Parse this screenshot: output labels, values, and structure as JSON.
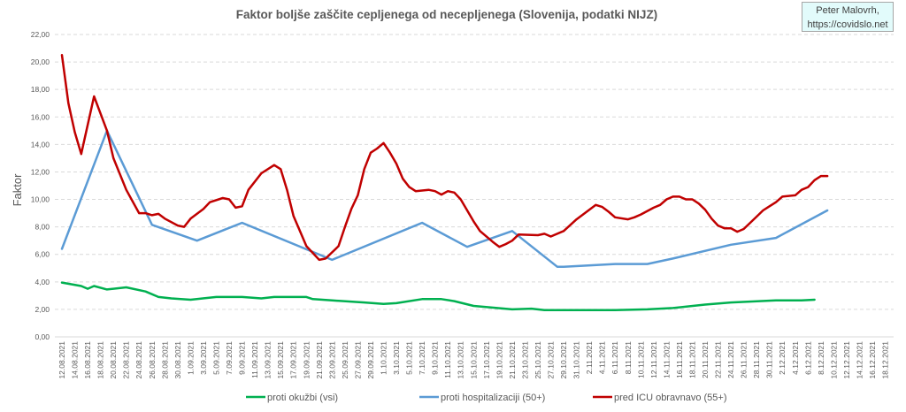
{
  "credit": {
    "line1": "Peter Malovrh,",
    "line2": "https://covidslo.net"
  },
  "chart_data": {
    "type": "line",
    "title": "Faktor boljše zaščite cepljenega od necepljenega (Slovenija, podatki NIJZ)",
    "xlabel": "",
    "ylabel": "Faktor",
    "ylim": [
      0,
      22
    ],
    "yticks": [
      "0,00",
      "2,00",
      "4,00",
      "6,00",
      "8,00",
      "10,00",
      "12,00",
      "14,00",
      "16,00",
      "18,00",
      "20,00",
      "22,00"
    ],
    "grid": "horizontal dashed",
    "legend_position": "bottom",
    "categories": [
      "12.08.2021",
      "14.08.2021",
      "16.08.2021",
      "18.08.2021",
      "20.08.2021",
      "22.08.2021",
      "24.08.2021",
      "26.08.2021",
      "28.08.2021",
      "30.08.2021",
      "1.09.2021",
      "3.09.2021",
      "5.09.2021",
      "7.09.2021",
      "9.09.2021",
      "11.09.2021",
      "13.09.2021",
      "15.09.2021",
      "17.09.2021",
      "19.09.2021",
      "21.09.2021",
      "23.09.2021",
      "25.09.2021",
      "27.09.2021",
      "29.09.2021",
      "1.10.2021",
      "3.10.2021",
      "5.10.2021",
      "7.10.2021",
      "9.10.2021",
      "11.10.2021",
      "13.10.2021",
      "15.10.2021",
      "17.10.2021",
      "19.10.2021",
      "21.10.2021",
      "23.10.2021",
      "25.10.2021",
      "27.10.2021",
      "29.10.2021",
      "31.10.2021",
      "2.11.2021",
      "4.11.2021",
      "6.11.2021",
      "8.11.2021",
      "10.11.2021",
      "12.11.2021",
      "14.11.2021",
      "16.11.2021",
      "18.11.2021",
      "20.11.2021",
      "22.11.2021",
      "24.11.2021",
      "26.11.2021",
      "28.11.2021",
      "30.11.2021",
      "2.12.2021",
      "4.12.2021",
      "6.12.2021",
      "8.12.2021",
      "10.12.2021",
      "12.12.2021",
      "14.12.2021",
      "16.12.2021",
      "18.12.2021"
    ],
    "series": [
      {
        "name": "proti okužbi (vsi)",
        "color": "#00b050",
        "points": [
          [
            "12.08.2021",
            3.95
          ],
          [
            "15.08.2021",
            3.7
          ],
          [
            "16.08.2021",
            3.5
          ],
          [
            "17.08.2021",
            3.7
          ],
          [
            "19.08.2021",
            3.45
          ],
          [
            "22.08.2021",
            3.6
          ],
          [
            "25.08.2021",
            3.3
          ],
          [
            "27.08.2021",
            2.9
          ],
          [
            "29.08.2021",
            2.8
          ],
          [
            "1.09.2021",
            2.7
          ],
          [
            "5.09.2021",
            2.9
          ],
          [
            "9.09.2021",
            2.9
          ],
          [
            "12.09.2021",
            2.8
          ],
          [
            "14.09.2021",
            2.9
          ],
          [
            "19.09.2021",
            2.9
          ],
          [
            "20.09.2021",
            2.75
          ],
          [
            "23.09.2021",
            2.65
          ],
          [
            "28.09.2021",
            2.5
          ],
          [
            "1.10.2021",
            2.4
          ],
          [
            "3.10.2021",
            2.45
          ],
          [
            "7.10.2021",
            2.75
          ],
          [
            "10.10.2021",
            2.75
          ],
          [
            "12.10.2021",
            2.6
          ],
          [
            "15.10.2021",
            2.25
          ],
          [
            "21.10.2021",
            2.0
          ],
          [
            "24.10.2021",
            2.05
          ],
          [
            "26.10.2021",
            1.95
          ],
          [
            "6.11.2021",
            1.95
          ],
          [
            "11.11.2021",
            2.0
          ],
          [
            "15.11.2021",
            2.1
          ],
          [
            "20.11.2021",
            2.35
          ],
          [
            "24.11.2021",
            2.5
          ],
          [
            "1.12.2021",
            2.65
          ],
          [
            "5.12.2021",
            2.65
          ],
          [
            "7.12.2021",
            2.7
          ]
        ]
      },
      {
        "name": "proti hospitalizaciji (50+)",
        "color": "#5b9bd5",
        "points": [
          [
            "12.08.2021",
            6.4
          ],
          [
            "19.08.2021",
            15.0
          ],
          [
            "26.08.2021",
            8.15
          ],
          [
            "2.09.2021",
            7.0
          ],
          [
            "9.09.2021",
            8.3
          ],
          [
            "23.09.2021",
            5.6
          ],
          [
            "7.10.2021",
            8.3
          ],
          [
            "14.10.2021",
            6.55
          ],
          [
            "21.10.2021",
            7.7
          ],
          [
            "28.10.2021",
            5.1
          ],
          [
            "29.10.2021",
            5.1
          ],
          [
            "6.11.2021",
            5.3
          ],
          [
            "11.11.2021",
            5.3
          ],
          [
            "15.11.2021",
            5.7
          ],
          [
            "24.11.2021",
            6.7
          ],
          [
            "1.12.2021",
            7.2
          ],
          [
            "9.12.2021",
            9.2
          ]
        ]
      },
      {
        "name": "pred ICU obravnavo (55+)",
        "color": "#c00000",
        "points": [
          [
            "12.08.2021",
            20.5
          ],
          [
            "13.08.2021",
            17.0
          ],
          [
            "14.08.2021",
            14.9
          ],
          [
            "15.08.2021",
            13.3
          ],
          [
            "17.08.2021",
            17.5
          ],
          [
            "19.08.2021",
            15.0
          ],
          [
            "20.08.2021",
            13.0
          ],
          [
            "22.08.2021",
            10.7
          ],
          [
            "24.08.2021",
            9.0
          ],
          [
            "25.08.2021",
            9.0
          ],
          [
            "26.08.2021",
            8.85
          ],
          [
            "27.08.2021",
            8.95
          ],
          [
            "28.08.2021",
            8.6
          ],
          [
            "30.08.2021",
            8.1
          ],
          [
            "31.08.2021",
            8.0
          ],
          [
            "1.09.2021",
            8.6
          ],
          [
            "3.09.2021",
            9.3
          ],
          [
            "4.09.2021",
            9.8
          ],
          [
            "6.09.2021",
            10.1
          ],
          [
            "7.09.2021",
            10.0
          ],
          [
            "8.09.2021",
            9.4
          ],
          [
            "9.09.2021",
            9.5
          ],
          [
            "10.09.2021",
            10.7
          ],
          [
            "12.09.2021",
            11.9
          ],
          [
            "14.09.2021",
            12.5
          ],
          [
            "15.09.2021",
            12.2
          ],
          [
            "16.09.2021",
            10.7
          ],
          [
            "17.09.2021",
            8.8
          ],
          [
            "19.09.2021",
            6.6
          ],
          [
            "21.09.2021",
            5.6
          ],
          [
            "22.09.2021",
            5.7
          ],
          [
            "24.09.2021",
            6.6
          ],
          [
            "25.09.2021",
            8.0
          ],
          [
            "26.09.2021",
            9.3
          ],
          [
            "27.09.2021",
            10.3
          ],
          [
            "28.09.2021",
            12.2
          ],
          [
            "29.09.2021",
            13.4
          ],
          [
            "30.09.2021",
            13.7
          ],
          [
            "1.10.2021",
            14.1
          ],
          [
            "2.10.2021",
            13.4
          ],
          [
            "3.10.2021",
            12.6
          ],
          [
            "4.10.2021",
            11.5
          ],
          [
            "5.10.2021",
            10.9
          ],
          [
            "6.10.2021",
            10.6
          ],
          [
            "8.10.2021",
            10.7
          ],
          [
            "9.10.2021",
            10.6
          ],
          [
            "10.10.2021",
            10.35
          ],
          [
            "11.10.2021",
            10.6
          ],
          [
            "12.10.2021",
            10.5
          ],
          [
            "13.10.2021",
            10.0
          ],
          [
            "15.10.2021",
            8.4
          ],
          [
            "16.10.2021",
            7.7
          ],
          [
            "18.10.2021",
            6.9
          ],
          [
            "19.10.2021",
            6.55
          ],
          [
            "20.10.2021",
            6.75
          ],
          [
            "21.10.2021",
            7.0
          ],
          [
            "22.10.2021",
            7.45
          ],
          [
            "25.10.2021",
            7.4
          ],
          [
            "26.10.2021",
            7.5
          ],
          [
            "27.10.2021",
            7.3
          ],
          [
            "29.10.2021",
            7.7
          ],
          [
            "31.10.2021",
            8.55
          ],
          [
            "3.11.2021",
            9.6
          ],
          [
            "4.11.2021",
            9.45
          ],
          [
            "5.11.2021",
            9.1
          ],
          [
            "6.11.2021",
            8.7
          ],
          [
            "8.11.2021",
            8.55
          ],
          [
            "9.11.2021",
            8.7
          ],
          [
            "10.11.2021",
            8.9
          ],
          [
            "12.11.2021",
            9.4
          ],
          [
            "13.11.2021",
            9.6
          ],
          [
            "14.11.2021",
            10.0
          ],
          [
            "15.11.2021",
            10.2
          ],
          [
            "16.11.2021",
            10.2
          ],
          [
            "17.11.2021",
            10.0
          ],
          [
            "18.11.2021",
            10.0
          ],
          [
            "19.11.2021",
            9.7
          ],
          [
            "20.11.2021",
            9.25
          ],
          [
            "21.11.2021",
            8.6
          ],
          [
            "22.11.2021",
            8.1
          ],
          [
            "23.11.2021",
            7.9
          ],
          [
            "24.11.2021",
            7.9
          ],
          [
            "25.11.2021",
            7.65
          ],
          [
            "26.11.2021",
            7.85
          ],
          [
            "27.11.2021",
            8.3
          ],
          [
            "28.11.2021",
            8.75
          ],
          [
            "29.11.2021",
            9.2
          ],
          [
            "30.11.2021",
            9.5
          ],
          [
            "1.12.2021",
            9.8
          ],
          [
            "2.12.2021",
            10.2
          ],
          [
            "4.12.2021",
            10.3
          ],
          [
            "5.12.2021",
            10.7
          ],
          [
            "6.12.2021",
            10.9
          ],
          [
            "7.12.2021",
            11.4
          ],
          [
            "8.12.2021",
            11.7
          ],
          [
            "9.12.2021",
            11.7
          ]
        ]
      }
    ]
  }
}
